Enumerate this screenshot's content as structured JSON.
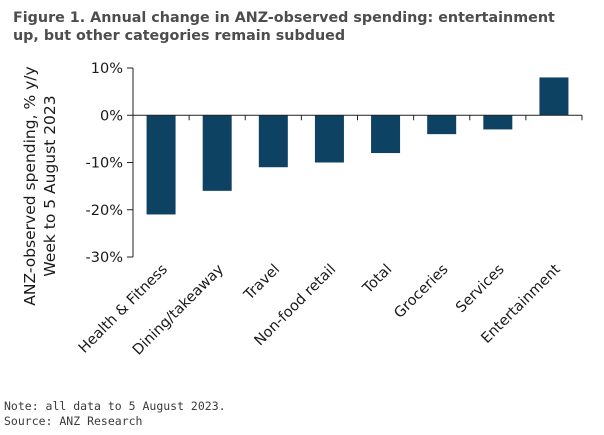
{
  "title_lines": [
    "Figure 1. Annual change in ANZ-observed spending: entertainment",
    "up, but other categories remain subdued"
  ],
  "footer": {
    "note": "Note: all data to 5 August 2023.",
    "source": "Source: ANZ Research"
  },
  "colors": {
    "bar": "#0e4263",
    "axis": "#222222",
    "text": "#1a1a1a",
    "title": "#4d4d4d"
  },
  "chart_data": {
    "type": "bar",
    "title": "Figure 1. Annual change in ANZ-observed spending: entertainment up, but other categories remain subdued",
    "categories": [
      "Health & Fitness",
      "Dining/takeaway",
      "Travel",
      "Non-food retail",
      "Total",
      "Groceries",
      "Services",
      "Entertainment"
    ],
    "values": [
      -21,
      -16,
      -11,
      -10,
      -8,
      -4,
      -3,
      8
    ],
    "xlabel": "",
    "ylabel_lines": [
      "ANZ-observed spending, % y/y",
      "Week to 5 August 2023"
    ],
    "ylim": [
      -30,
      10
    ],
    "yticks": [
      10,
      0,
      -10,
      -20,
      -30
    ],
    "ytick_labels": [
      "10%",
      "0%",
      "-10%",
      "-20%",
      "-30%"
    ],
    "grid": false,
    "legend": "none"
  }
}
